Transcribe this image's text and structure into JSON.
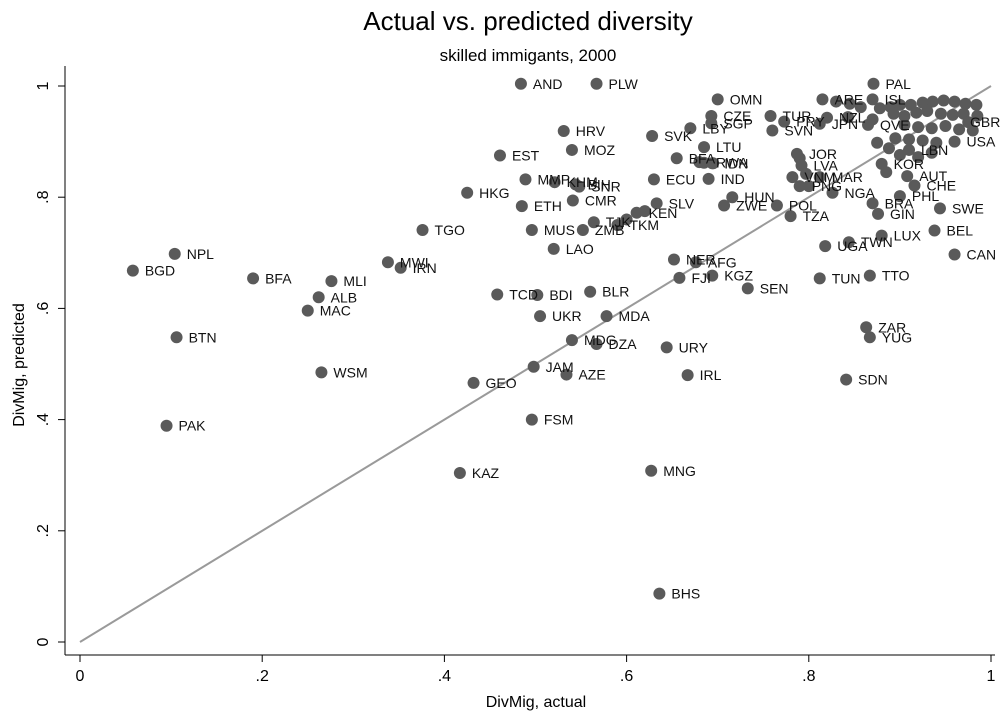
{
  "chart_data": {
    "type": "scatter",
    "title": "Actual vs. predicted diversity",
    "subtitle": "skilled immigants, 2000",
    "xlabel": "DivMig, actual",
    "ylabel": "DivMig, predicted",
    "xlim": [
      0,
      1
    ],
    "ylim": [
      0,
      1
    ],
    "x_ticks": [
      0,
      0.2,
      0.4,
      0.6,
      0.8,
      1
    ],
    "x_tick_labels": [
      "0",
      ".2",
      ".4",
      ".6",
      ".8",
      "1"
    ],
    "y_ticks": [
      0,
      0.2,
      0.4,
      0.6,
      0.8,
      1
    ],
    "y_tick_labels": [
      "0",
      ".2",
      ".4",
      ".6",
      ".8",
      "1"
    ],
    "grid": false,
    "reference_line": {
      "from": [
        0,
        0
      ],
      "to": [
        1,
        1
      ]
    },
    "point_color": "#5a5a5a",
    "line_color": "#9a9a9a",
    "points": [
      {
        "label": "AND",
        "x": 0.484,
        "y": 1.004
      },
      {
        "label": "PLW",
        "x": 0.567,
        "y": 1.004
      },
      {
        "label": "PAL",
        "x": 0.871,
        "y": 1.004
      },
      {
        "label": "OMN",
        "x": 0.7,
        "y": 0.976
      },
      {
        "label": "ARE",
        "x": 0.815,
        "y": 0.976
      },
      {
        "label": "ISL",
        "x": 0.87,
        "y": 0.976
      },
      {
        "label": "CZE",
        "x": 0.693,
        "y": 0.946
      },
      {
        "label": "TUR",
        "x": 0.758,
        "y": 0.946
      },
      {
        "label": "NZL",
        "x": 0.82,
        "y": 0.943
      },
      {
        "label": "SGP",
        "x": 0.693,
        "y": 0.933
      },
      {
        "label": "PRY",
        "x": 0.773,
        "y": 0.936
      },
      {
        "label": "JPN",
        "x": 0.812,
        "y": 0.932
      },
      {
        "label": "SVN",
        "x": 0.76,
        "y": 0.92
      },
      {
        "label": "QVE",
        "x": 0.865,
        "y": 0.93
      },
      {
        "label": "LBY",
        "x": 0.67,
        "y": 0.924
      },
      {
        "label": "HRV",
        "x": 0.531,
        "y": 0.919
      },
      {
        "label": "SVK",
        "x": 0.628,
        "y": 0.91
      },
      {
        "label": "MOZ",
        "x": 0.54,
        "y": 0.885
      },
      {
        "label": "LTU",
        "x": 0.685,
        "y": 0.89
      },
      {
        "label": "EST",
        "x": 0.461,
        "y": 0.875
      },
      {
        "label": "BFA2",
        "x": 0.655,
        "y": 0.87
      },
      {
        "label": "RWA",
        "x": 0.685,
        "y": 0.862
      },
      {
        "label": "IDN",
        "x": 0.694,
        "y": 0.861
      },
      {
        "label": "JOR",
        "x": 0.787,
        "y": 0.878
      },
      {
        "label": "LVA",
        "x": 0.792,
        "y": 0.857
      },
      {
        "label": "LBN",
        "x": 0.91,
        "y": 0.885
      },
      {
        "label": "USA",
        "x": 0.96,
        "y": 0.9
      },
      {
        "label": "GBR",
        "x": 0.975,
        "y": 0.935
      },
      {
        "label": "KOR",
        "x": 0.88,
        "y": 0.86
      },
      {
        "label": "MAR",
        "x": 0.812,
        "y": 0.836
      },
      {
        "label": "VNM",
        "x": 0.782,
        "y": 0.836
      },
      {
        "label": "PNG",
        "x": 0.79,
        "y": 0.82
      },
      {
        "label": "AUT",
        "x": 0.908,
        "y": 0.838
      },
      {
        "label": "CHE",
        "x": 0.916,
        "y": 0.821
      },
      {
        "label": "IND",
        "x": 0.69,
        "y": 0.833
      },
      {
        "label": "ECU",
        "x": 0.63,
        "y": 0.832
      },
      {
        "label": "MMP",
        "x": 0.489,
        "y": 0.832
      },
      {
        "label": "KHM",
        "x": 0.521,
        "y": 0.827
      },
      {
        "label": "BIH",
        "x": 0.544,
        "y": 0.823
      },
      {
        "label": "SNR",
        "x": 0.548,
        "y": 0.819
      },
      {
        "label": "NGA",
        "x": 0.826,
        "y": 0.808
      },
      {
        "label": "HKG",
        "x": 0.425,
        "y": 0.808
      },
      {
        "label": "PHL",
        "x": 0.9,
        "y": 0.802
      },
      {
        "label": "HUN",
        "x": 0.716,
        "y": 0.8
      },
      {
        "label": "ZWE",
        "x": 0.707,
        "y": 0.785
      },
      {
        "label": "BRA",
        "x": 0.87,
        "y": 0.789
      },
      {
        "label": "POL",
        "x": 0.765,
        "y": 0.785
      },
      {
        "label": "CMR",
        "x": 0.541,
        "y": 0.794
      },
      {
        "label": "ETH",
        "x": 0.485,
        "y": 0.784
      },
      {
        "label": "SLV",
        "x": 0.633,
        "y": 0.789
      },
      {
        "label": "SWE",
        "x": 0.944,
        "y": 0.78
      },
      {
        "label": "TZA",
        "x": 0.78,
        "y": 0.766
      },
      {
        "label": "GIN",
        "x": 0.876,
        "y": 0.77
      },
      {
        "label": "KEN",
        "x": 0.611,
        "y": 0.772
      },
      {
        "label": "TGO",
        "x": 0.376,
        "y": 0.741
      },
      {
        "label": "MUS",
        "x": 0.496,
        "y": 0.741
      },
      {
        "label": "ZMB",
        "x": 0.552,
        "y": 0.741
      },
      {
        "label": "TJK",
        "x": 0.564,
        "y": 0.755
      },
      {
        "label": "TKM",
        "x": 0.59,
        "y": 0.75
      },
      {
        "label": "BEL",
        "x": 0.938,
        "y": 0.74
      },
      {
        "label": "LUX",
        "x": 0.88,
        "y": 0.731
      },
      {
        "label": "TWN",
        "x": 0.844,
        "y": 0.719
      },
      {
        "label": "UGA",
        "x": 0.818,
        "y": 0.712
      },
      {
        "label": "LAO",
        "x": 0.52,
        "y": 0.707
      },
      {
        "label": "NPL",
        "x": 0.104,
        "y": 0.698
      },
      {
        "label": "CAN",
        "x": 0.96,
        "y": 0.697
      },
      {
        "label": "NER",
        "x": 0.652,
        "y": 0.688
      },
      {
        "label": "AFG",
        "x": 0.676,
        "y": 0.683
      },
      {
        "label": "MWI",
        "x": 0.338,
        "y": 0.683
      },
      {
        "label": "IRN",
        "x": 0.352,
        "y": 0.673
      },
      {
        "label": "BGD",
        "x": 0.058,
        "y": 0.668
      },
      {
        "label": "FJI",
        "x": 0.658,
        "y": 0.655
      },
      {
        "label": "KGZ",
        "x": 0.694,
        "y": 0.659
      },
      {
        "label": "TTO",
        "x": 0.867,
        "y": 0.659
      },
      {
        "label": "TUN",
        "x": 0.812,
        "y": 0.654
      },
      {
        "label": "BFA",
        "x": 0.19,
        "y": 0.654
      },
      {
        "label": "MLI",
        "x": 0.276,
        "y": 0.649
      },
      {
        "label": "SEN",
        "x": 0.733,
        "y": 0.636
      },
      {
        "label": "BLR",
        "x": 0.56,
        "y": 0.63
      },
      {
        "label": "TCD",
        "x": 0.458,
        "y": 0.625
      },
      {
        "label": "BDI",
        "x": 0.502,
        "y": 0.624
      },
      {
        "label": "ALB",
        "x": 0.262,
        "y": 0.62
      },
      {
        "label": "MAC",
        "x": 0.25,
        "y": 0.596
      },
      {
        "label": "UKR",
        "x": 0.505,
        "y": 0.586
      },
      {
        "label": "MDA",
        "x": 0.578,
        "y": 0.586
      },
      {
        "label": "ZAR",
        "x": 0.863,
        "y": 0.566
      },
      {
        "label": "BTN",
        "x": 0.106,
        "y": 0.548
      },
      {
        "label": "YUG",
        "x": 0.867,
        "y": 0.548
      },
      {
        "label": "MDG",
        "x": 0.54,
        "y": 0.543
      },
      {
        "label": "DZA",
        "x": 0.567,
        "y": 0.536
      },
      {
        "label": "URY",
        "x": 0.644,
        "y": 0.53
      },
      {
        "label": "JAM",
        "x": 0.498,
        "y": 0.495
      },
      {
        "label": "WSM",
        "x": 0.265,
        "y": 0.485
      },
      {
        "label": "AZE",
        "x": 0.534,
        "y": 0.481
      },
      {
        "label": "IRL",
        "x": 0.667,
        "y": 0.48
      },
      {
        "label": "SDN",
        "x": 0.841,
        "y": 0.472
      },
      {
        "label": "GEO",
        "x": 0.432,
        "y": 0.466
      },
      {
        "label": "FSM",
        "x": 0.496,
        "y": 0.4
      },
      {
        "label": "PAK",
        "x": 0.095,
        "y": 0.389
      },
      {
        "label": "MNG",
        "x": 0.627,
        "y": 0.308
      },
      {
        "label": "KAZ",
        "x": 0.417,
        "y": 0.304
      },
      {
        "label": "BHS",
        "x": 0.636,
        "y": 0.087
      }
    ],
    "unlabeled_points": [
      {
        "x": 0.845,
        "y": 0.968
      },
      {
        "x": 0.857,
        "y": 0.962
      },
      {
        "x": 0.878,
        "y": 0.96
      },
      {
        "x": 0.89,
        "y": 0.962
      },
      {
        "x": 0.9,
        "y": 0.966
      },
      {
        "x": 0.912,
        "y": 0.966
      },
      {
        "x": 0.925,
        "y": 0.97
      },
      {
        "x": 0.936,
        "y": 0.972
      },
      {
        "x": 0.948,
        "y": 0.974
      },
      {
        "x": 0.96,
        "y": 0.972
      },
      {
        "x": 0.972,
        "y": 0.968
      },
      {
        "x": 0.984,
        "y": 0.966
      },
      {
        "x": 0.893,
        "y": 0.95
      },
      {
        "x": 0.905,
        "y": 0.946
      },
      {
        "x": 0.918,
        "y": 0.952
      },
      {
        "x": 0.93,
        "y": 0.955
      },
      {
        "x": 0.945,
        "y": 0.95
      },
      {
        "x": 0.958,
        "y": 0.948
      },
      {
        "x": 0.97,
        "y": 0.95
      },
      {
        "x": 0.985,
        "y": 0.946
      },
      {
        "x": 0.905,
        "y": 0.93
      },
      {
        "x": 0.92,
        "y": 0.926
      },
      {
        "x": 0.935,
        "y": 0.924
      },
      {
        "x": 0.95,
        "y": 0.928
      },
      {
        "x": 0.965,
        "y": 0.922
      },
      {
        "x": 0.98,
        "y": 0.92
      },
      {
        "x": 0.895,
        "y": 0.906
      },
      {
        "x": 0.91,
        "y": 0.904
      },
      {
        "x": 0.925,
        "y": 0.902
      },
      {
        "x": 0.94,
        "y": 0.898
      },
      {
        "x": 0.888,
        "y": 0.888
      },
      {
        "x": 0.9,
        "y": 0.876
      },
      {
        "x": 0.92,
        "y": 0.872
      },
      {
        "x": 0.935,
        "y": 0.88
      },
      {
        "x": 0.875,
        "y": 0.898
      },
      {
        "x": 0.885,
        "y": 0.845
      },
      {
        "x": 0.87,
        "y": 0.94
      },
      {
        "x": 0.843,
        "y": 0.944
      },
      {
        "x": 0.83,
        "y": 0.972
      },
      {
        "x": 0.8,
        "y": 0.82
      },
      {
        "x": 0.797,
        "y": 0.842
      },
      {
        "x": 0.79,
        "y": 0.87
      },
      {
        "x": 0.6,
        "y": 0.76
      },
      {
        "x": 0.62,
        "y": 0.775
      },
      {
        "x": 0.695,
        "y": 0.861
      },
      {
        "x": 0.68,
        "y": 0.863
      }
    ]
  }
}
